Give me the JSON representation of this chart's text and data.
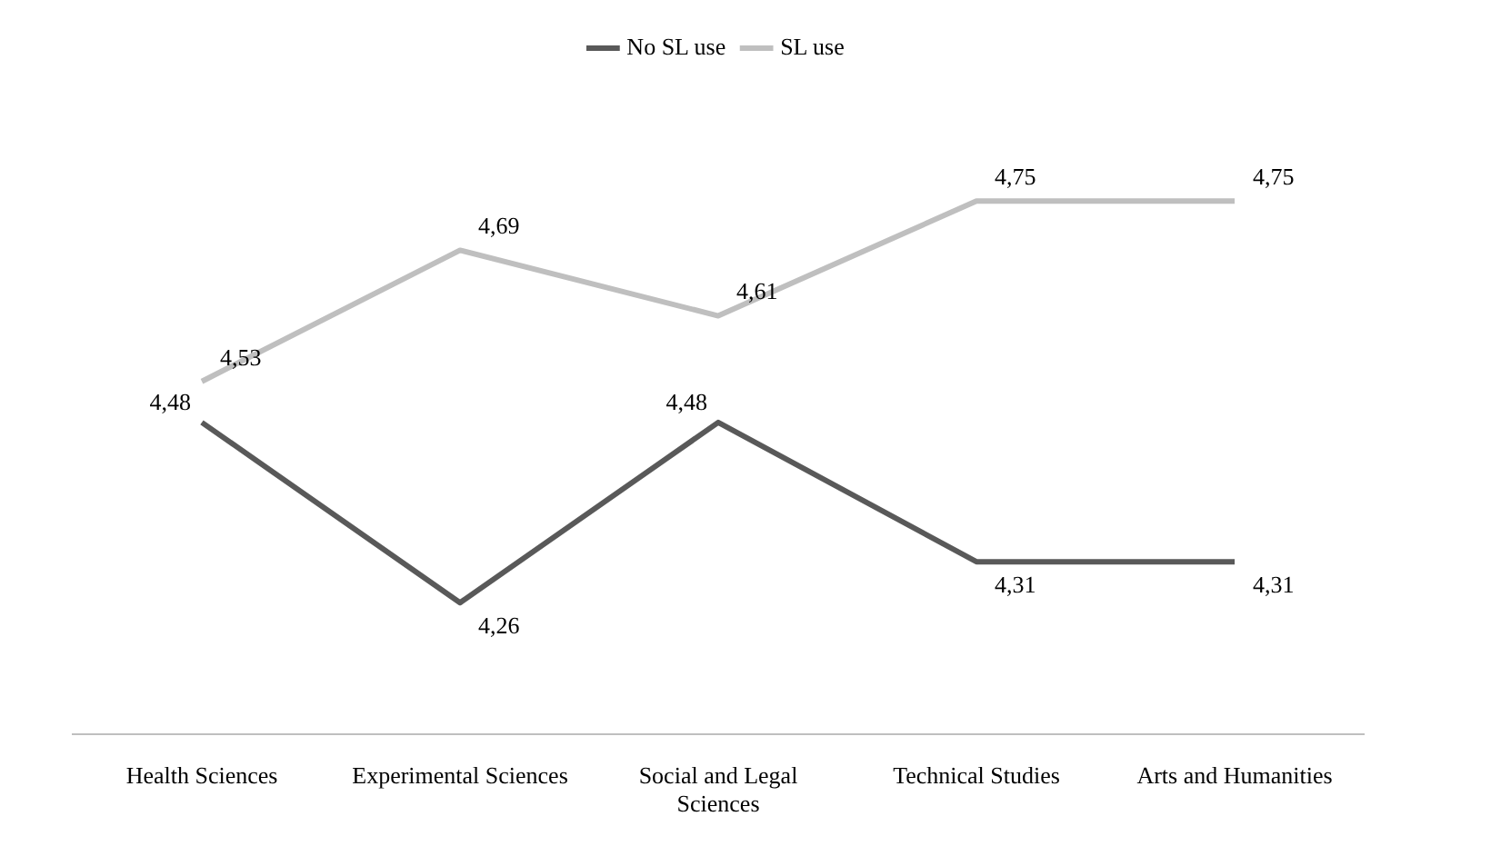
{
  "chart_data": {
    "type": "line",
    "categories": [
      "Health Sciences",
      "Experimental Sciences",
      "Social and Legal Sciences",
      "Technical Studies",
      "Arts and Humanities"
    ],
    "series": [
      {
        "name": "No SL use",
        "color": "#595959",
        "values": [
          4.48,
          4.26,
          4.48,
          4.31,
          4.31
        ],
        "value_labels": [
          "4,48",
          "4,26",
          "4,48",
          "4,31",
          "4,31"
        ]
      },
      {
        "name": "SL use",
        "color": "#bfbfbf",
        "values": [
          4.53,
          4.69,
          4.61,
          4.75,
          4.75
        ],
        "value_labels": [
          "4,53",
          "4,69",
          "4,61",
          "4,75",
          "4,75"
        ]
      }
    ],
    "grid": false,
    "legend": "top",
    "marker": "none",
    "line_style": "solid"
  }
}
